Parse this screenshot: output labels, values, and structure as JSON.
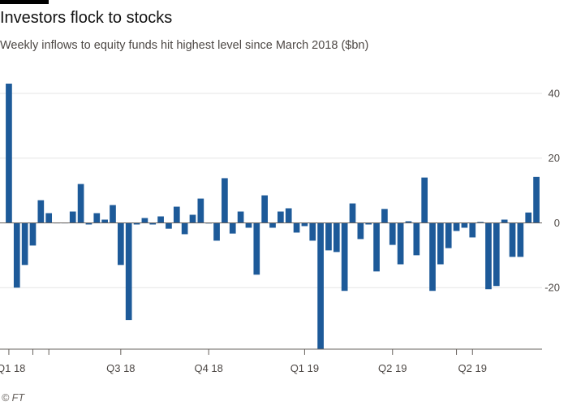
{
  "colors": {
    "bar": "#1d5a99",
    "grid": "#e6e6e6",
    "zero": "#66605c",
    "text": "#4d4845"
  },
  "chart_data": {
    "type": "bar",
    "title": "Investors flock to stocks",
    "subtitle": "Weekly inflows to equity funds hit highest level since March 2018 ($bn)",
    "ylim": [
      -39,
      43
    ],
    "yticks": [
      40,
      20,
      0,
      -20
    ],
    "xtick_labels": [
      {
        "label": "Q1 18",
        "index": 0
      },
      {
        "label": "Q3 18",
        "index": 14
      },
      {
        "label": "Q4 18",
        "index": 25
      },
      {
        "label": "Q1 19",
        "index": 37
      },
      {
        "label": "Q2 19",
        "index": 48
      },
      {
        "label": "Q2 19",
        "index": 58
      }
    ],
    "minor_tick_indices": [
      3,
      5,
      56
    ],
    "series": [
      {
        "name": "Weekly inflows ($bn)",
        "values": [
          43,
          -20,
          -13,
          -7,
          7,
          3,
          0,
          0,
          3.5,
          12,
          -0.5,
          3,
          1,
          5.5,
          -13,
          -30,
          -0.5,
          1.5,
          -0.5,
          2,
          -1.8,
          5,
          -3.5,
          2.5,
          7.5,
          -0.2,
          -5.5,
          13.8,
          -3.3,
          3.5,
          -1.5,
          -16,
          8.5,
          -1.5,
          3.5,
          4.5,
          -3,
          -1,
          -5.5,
          -39,
          -8.5,
          -9,
          -21,
          6,
          -5,
          -0.5,
          -15,
          4.3,
          -6.8,
          -12.8,
          0.5,
          -10,
          14,
          -21,
          -12.8,
          -7.8,
          -2.5,
          -1.5,
          -4.5,
          0.3,
          -20.5,
          -19.5,
          1,
          -10.5,
          -10.5,
          3.2,
          14.2
        ]
      }
    ]
  },
  "source": "© FT"
}
